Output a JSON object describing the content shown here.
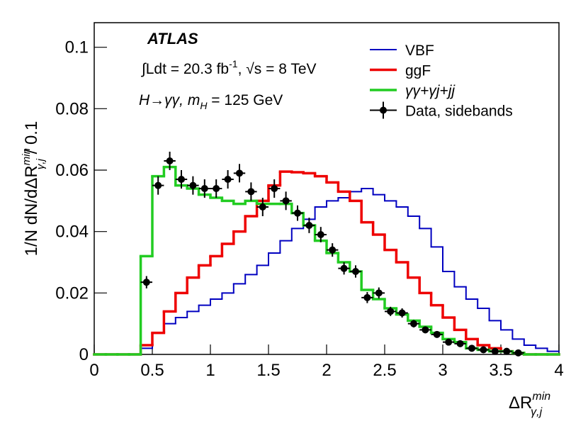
{
  "chart_data": {
    "type": "histogram",
    "bins": [
      0,
      0.1,
      0.2,
      0.3,
      0.4,
      0.5,
      0.6,
      0.7,
      0.8,
      0.9,
      1,
      1.1,
      1.2,
      1.3,
      1.4,
      1.5,
      1.6,
      1.7,
      1.8,
      1.9,
      2,
      2.1,
      2.2,
      2.3,
      2.4,
      2.5,
      2.6,
      2.7,
      2.8,
      2.9,
      3,
      3.1,
      3.2,
      3.3,
      3.4,
      3.5,
      3.6,
      3.7,
      3.8,
      3.9,
      4
    ],
    "series": [
      {
        "name": "VBF",
        "color": "#0000c0",
        "values": [
          0,
          0,
          0,
          0,
          0.002,
          0.007,
          0.01,
          0.012,
          0.014,
          0.016,
          0.018,
          0.02,
          0.023,
          0.026,
          0.029,
          0.033,
          0.037,
          0.041,
          0.044,
          0.048,
          0.05,
          0.051,
          0.053,
          0.054,
          0.052,
          0.05,
          0.048,
          0.045,
          0.041,
          0.035,
          0.027,
          0.022,
          0.018,
          0.015,
          0.011,
          0.008,
          0.005,
          0.003,
          0.002,
          0.001
        ]
      },
      {
        "name": "ggF",
        "color": "#ee0000",
        "values": [
          0,
          0,
          0,
          0,
          0.003,
          0.007,
          0.014,
          0.02,
          0.025,
          0.029,
          0.032,
          0.036,
          0.04,
          0.045,
          0.05,
          0.055,
          0.0595,
          0.0593,
          0.059,
          0.058,
          0.056,
          0.053,
          0.05,
          0.043,
          0.039,
          0.034,
          0.03,
          0.025,
          0.02,
          0.016,
          0.012,
          0.008,
          0.005,
          0.003,
          0.002,
          0.001,
          0.0005,
          0,
          0,
          0
        ]
      },
      {
        "name": "γγ+γj+jj",
        "color": "#22cc22",
        "values": [
          0,
          0,
          0,
          0,
          0.032,
          0.058,
          0.061,
          0.055,
          0.054,
          0.052,
          0.051,
          0.05,
          0.049,
          0.05,
          0.049,
          0.049,
          0.049,
          0.046,
          0.042,
          0.037,
          0.033,
          0.03,
          0.027,
          0.021,
          0.018,
          0.015,
          0.013,
          0.011,
          0.009,
          0.007,
          0.005,
          0.004,
          0.002,
          0.0015,
          0.001,
          0.001,
          0.0005,
          0,
          0,
          0
        ]
      }
    ],
    "points": {
      "name": "Data, sidebands",
      "color": "#000000",
      "x": [
        0.45,
        0.55,
        0.65,
        0.75,
        0.85,
        0.95,
        1.05,
        1.15,
        1.25,
        1.35,
        1.45,
        1.55,
        1.65,
        1.75,
        1.85,
        1.95,
        2.05,
        2.15,
        2.25,
        2.35,
        2.45,
        2.55,
        2.65,
        2.75,
        2.85,
        2.95,
        3.05,
        3.15,
        3.25,
        3.35,
        3.45,
        3.55,
        3.65
      ],
      "values": [
        0.0235,
        0.055,
        0.063,
        0.057,
        0.055,
        0.054,
        0.054,
        0.057,
        0.059,
        0.053,
        0.048,
        0.054,
        0.05,
        0.046,
        0.042,
        0.039,
        0.034,
        0.028,
        0.027,
        0.0185,
        0.02,
        0.014,
        0.0135,
        0.01,
        0.008,
        0.0065,
        0.004,
        0.0035,
        0.002,
        0.0015,
        0.001,
        0.001,
        0.0005
      ],
      "errors": [
        0.002,
        0.003,
        0.003,
        0.003,
        0.003,
        0.003,
        0.003,
        0.003,
        0.003,
        0.003,
        0.003,
        0.003,
        0.003,
        0.0025,
        0.0025,
        0.0025,
        0.0022,
        0.002,
        0.002,
        0.0018,
        0.0018,
        0.0015,
        0.0015,
        0.0012,
        0.0011,
        0.001,
        0.0008,
        0.0008,
        0.0006,
        0.0005,
        0.0004,
        0.0004,
        0.0003
      ]
    },
    "xlim": [
      0,
      4
    ],
    "ylim": [
      0,
      0.108
    ],
    "xticks": [
      0,
      0.5,
      1,
      1.5,
      2,
      2.5,
      3,
      3.5,
      4
    ],
    "yticks": [
      0,
      0.02,
      0.04,
      0.06,
      0.08,
      0.1
    ],
    "xlabel": {
      "main": "ΔR",
      "sup": "min",
      "sub": "γ,j"
    },
    "ylabel": {
      "main": "1/N dN/dΔR",
      "sup": "min",
      "sub": "γ,j",
      "suffix": " / 0.1"
    },
    "annotations": {
      "experiment": "ATLAS",
      "lumi": {
        "pre": "∫Ldt = 20.3 fb",
        "sup": "-1",
        "post": ", √s = 8 TeV"
      },
      "process": {
        "pre": "H→γγ, m",
        "sub": "H",
        "post": " = 125 GeV"
      }
    },
    "legend": "upper right"
  }
}
